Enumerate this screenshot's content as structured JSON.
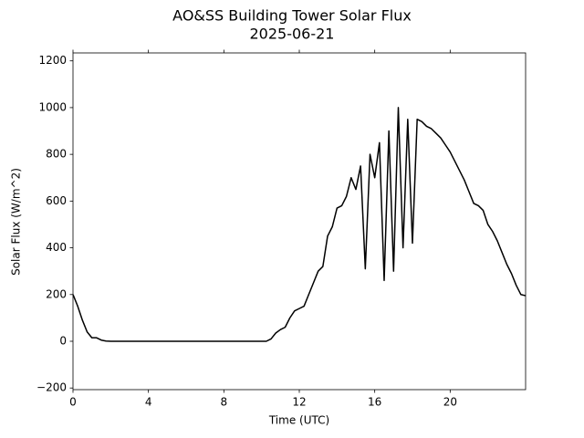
{
  "chart_data": {
    "type": "line",
    "title": "AO&SS Building Tower Solar Flux",
    "subtitle": "2025-06-21",
    "x_label": "Time (UTC)",
    "y_label": "Solar Flux (W/m^2)",
    "color": "#000000",
    "x": [
      0,
      0.25,
      0.5,
      0.75,
      1,
      1.25,
      1.5,
      1.75,
      2,
      2.25,
      2.5,
      2.75,
      3,
      3.25,
      3.5,
      3.75,
      4,
      4.25,
      4.5,
      4.75,
      5,
      5.25,
      5.5,
      5.75,
      6,
      6.25,
      6.5,
      6.75,
      7,
      7.25,
      7.5,
      7.75,
      8,
      8.25,
      8.5,
      8.75,
      9,
      9.25,
      9.5,
      9.75,
      10,
      10.25,
      10.5,
      10.75,
      11,
      11.25,
      11.5,
      11.75,
      12,
      12.25,
      12.5,
      12.75,
      13,
      13.25,
      13.5,
      13.75,
      14,
      14.25,
      14.5,
      14.75,
      15,
      15.25,
      15.5,
      15.75,
      16,
      16.25,
      16.5,
      16.75,
      17,
      17.25,
      17.5,
      17.75,
      18,
      18.25,
      18.5,
      18.75,
      19,
      19.25,
      19.5,
      19.75,
      20,
      20.25,
      20.5,
      20.75,
      21,
      21.25,
      21.5,
      21.75,
      22,
      22.25,
      22.5,
      22.75,
      23,
      23.25,
      23.5,
      23.75,
      24
    ],
    "values": [
      200,
      150,
      90,
      40,
      15,
      15,
      5,
      1,
      0,
      0,
      0,
      0,
      0,
      0,
      0,
      0,
      0,
      0,
      0,
      0,
      0,
      0,
      0,
      0,
      0,
      0,
      0,
      0,
      0,
      0,
      0,
      0,
      0,
      0,
      0,
      0,
      0,
      0,
      0,
      0,
      0,
      0,
      10,
      35,
      50,
      60,
      100,
      130,
      140,
      150,
      200,
      250,
      300,
      320,
      450,
      490,
      570,
      580,
      620,
      700,
      650,
      750,
      310,
      800,
      700,
      850,
      260,
      900,
      300,
      1000,
      400,
      950,
      420,
      950,
      940,
      920,
      910,
      890,
      870,
      840,
      810,
      770,
      730,
      690,
      640,
      590,
      580,
      560,
      500,
      470,
      430,
      380,
      330,
      290,
      240,
      200,
      195
    ],
    "xlim": [
      0,
      24
    ],
    "xticks": [
      0,
      4,
      8,
      12,
      16,
      20
    ],
    "ylim": [
      -207,
      1234
    ],
    "yticks": [
      {
        "value": -200,
        "label": "−200"
      },
      0,
      200,
      400,
      600,
      800,
      1000,
      1200
    ]
  }
}
